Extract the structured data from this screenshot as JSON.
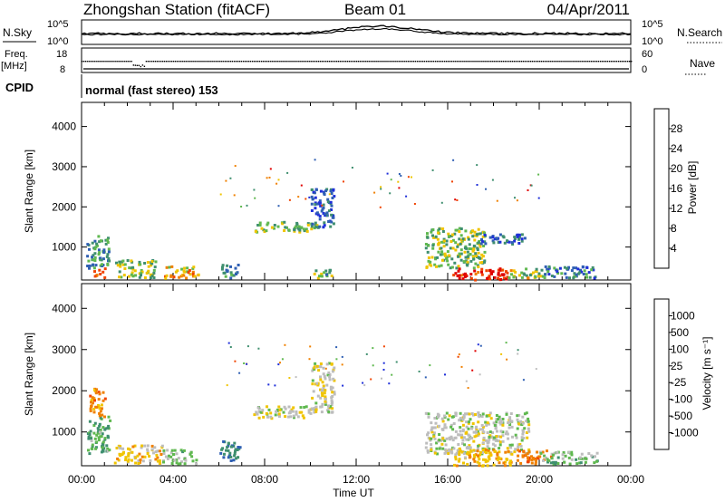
{
  "header": {
    "station": "Zhongshan Station (fitACF)",
    "beam": "Beam 01",
    "date": "04/Apr/2011"
  },
  "ts_panels": {
    "nsky_label": "N.Sky",
    "nsky_ticks": [
      "10^5",
      "10^0"
    ],
    "nsearch_label": "N.Search",
    "nsearch_ticks": [
      "10^5",
      "10^0"
    ],
    "freq_label_1": "Freq.",
    "freq_label_2": "[MHz]",
    "freq_ticks": [
      "18",
      "8"
    ],
    "nave_label": "Nave",
    "nave_ticks": [
      "60",
      "0"
    ],
    "cpid_label": "CPID",
    "cpid_value": "normal (fast stereo) 153"
  },
  "colors": {
    "power": [
      "#1f2fd9",
      "#2f5fb3",
      "#3f8f6f",
      "#5fb84f",
      "#f0c400",
      "#f08000",
      "#f04400",
      "#e00000"
    ],
    "velocity": [
      "#e00000",
      "#f04400",
      "#f08000",
      "#f0c400",
      "#bdbdbd",
      "#5fb84f",
      "#3f8f6f",
      "#2f5fb3",
      "#1f2fd9"
    ]
  },
  "chart_data": [
    {
      "type": "heatmap",
      "title": "",
      "xlabel": "Time UT",
      "ylabel": "Slant Range [km]",
      "x_ticks": [
        "00:00",
        "04:00",
        "08:00",
        "12:00",
        "16:00",
        "20:00",
        "00:00"
      ],
      "y_ticks": [
        "1000",
        "2000",
        "3000",
        "4000"
      ],
      "ylim": [
        180,
        4600
      ],
      "colorbar_label": "Power [dB]",
      "colorbar_ticks": [
        "28",
        "24",
        "20",
        "16",
        "12",
        "8",
        "4"
      ],
      "clim": [
        0,
        32
      ],
      "blobs": [
        {
          "t": [
            0.2,
            1.2
          ],
          "r": [
            500,
            1300
          ],
          "z": 10
        },
        {
          "t": [
            0.5,
            1.0
          ],
          "r": [
            250,
            500
          ],
          "z": 24
        },
        {
          "t": [
            1.4,
            3.2
          ],
          "r": [
            250,
            700
          ],
          "z": 14
        },
        {
          "t": [
            3.6,
            5.1
          ],
          "r": [
            250,
            550
          ],
          "z": 20
        },
        {
          "t": [
            6.0,
            6.8
          ],
          "r": [
            250,
            600
          ],
          "z": 10
        },
        {
          "t": [
            7.5,
            10.3
          ],
          "r": [
            1400,
            1650
          ],
          "z": 14
        },
        {
          "t": [
            10.1,
            10.9
          ],
          "r": [
            250,
            500
          ],
          "z": 12
        },
        {
          "t": [
            10.0,
            11.0
          ],
          "r": [
            1500,
            2500
          ],
          "z": 6
        },
        {
          "t": [
            15.0,
            17.6
          ],
          "r": [
            500,
            1500
          ],
          "z": 14
        },
        {
          "t": [
            16.2,
            18.6
          ],
          "r": [
            200,
            500
          ],
          "z": 28
        },
        {
          "t": [
            17.2,
            19.4
          ],
          "r": [
            1100,
            1350
          ],
          "z": 6
        },
        {
          "t": [
            18.6,
            20.2
          ],
          "r": [
            250,
            500
          ],
          "z": 16
        },
        {
          "t": [
            20.0,
            22.5
          ],
          "r": [
            250,
            550
          ],
          "z": 8
        }
      ]
    },
    {
      "type": "heatmap",
      "title": "",
      "xlabel": "Time UT",
      "ylabel": "Slant Range [km]",
      "x_ticks": [
        "00:00",
        "04:00",
        "08:00",
        "12:00",
        "16:00",
        "20:00",
        "00:00"
      ],
      "y_ticks": [
        "1000",
        "2000",
        "3000",
        "4000"
      ],
      "ylim": [
        180,
        4600
      ],
      "colorbar_label": "Velocity [m s⁻¹]",
      "colorbar_ticks": [
        "1000",
        "500",
        "100",
        "25",
        "-25",
        "-100",
        "-500",
        "-1000"
      ],
      "clim": [
        -1000,
        1000
      ],
      "blobs": [
        {
          "t": [
            0.2,
            1.2
          ],
          "r": [
            500,
            1400
          ],
          "v": 300
        },
        {
          "t": [
            0.3,
            1.0
          ],
          "r": [
            1400,
            2100
          ],
          "v": -400
        },
        {
          "t": [
            1.4,
            3.5
          ],
          "r": [
            250,
            700
          ],
          "v": -200
        },
        {
          "t": [
            3.5,
            5.0
          ],
          "r": [
            250,
            600
          ],
          "v": 150
        },
        {
          "t": [
            6.0,
            6.9
          ],
          "r": [
            300,
            800
          ],
          "v": 500
        },
        {
          "t": [
            7.5,
            10.3
          ],
          "r": [
            1350,
            1650
          ],
          "v": 0
        },
        {
          "t": [
            10.0,
            11.0
          ],
          "r": [
            1500,
            2700
          ],
          "v": -60
        },
        {
          "t": [
            15.0,
            19.5
          ],
          "r": [
            500,
            1500
          ],
          "v": 0
        },
        {
          "t": [
            16.2,
            18.8
          ],
          "r": [
            200,
            600
          ],
          "v": -300
        },
        {
          "t": [
            19.0,
            20.5
          ],
          "r": [
            250,
            600
          ],
          "v": -500
        },
        {
          "t": [
            20.0,
            22.5
          ],
          "r": [
            250,
            550
          ],
          "v": 200
        }
      ]
    }
  ]
}
